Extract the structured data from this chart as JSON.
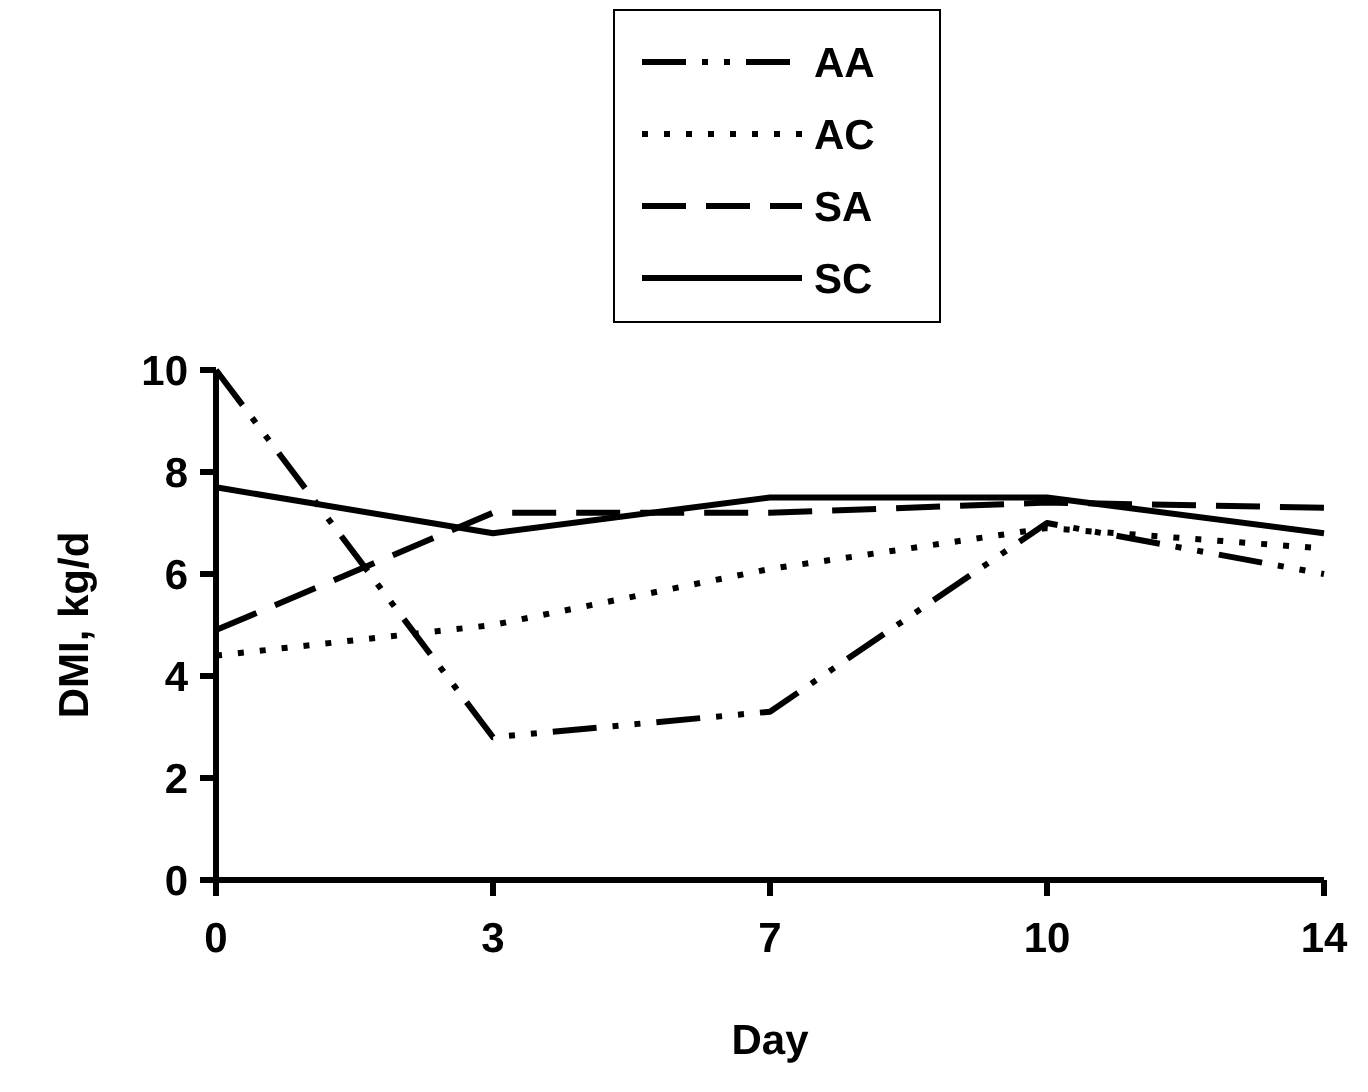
{
  "chart_data": {
    "type": "line",
    "xlabel": "Day",
    "ylabel": "DMI, kg/d",
    "categories": [
      "0",
      "3",
      "7",
      "10",
      "14"
    ],
    "ylim": [
      0,
      10
    ],
    "yticks": [
      0,
      2,
      4,
      6,
      8,
      10
    ],
    "grid": false,
    "legend": "top",
    "marker": "none",
    "series": [
      {
        "name": "AA",
        "color": "#000000",
        "line_style": "dashdot",
        "values": [
          10,
          2.8,
          3.3,
          7.0,
          6.0
        ]
      },
      {
        "name": "AC",
        "color": "#000000",
        "line_style": "dotted",
        "values": [
          4.4,
          5.0,
          6.1,
          6.9,
          6.5
        ]
      },
      {
        "name": "SA",
        "color": "#000000",
        "line_style": "dashed",
        "values": [
          4.9,
          7.2,
          7.2,
          7.4,
          7.3
        ]
      },
      {
        "name": "SC",
        "color": "#000000",
        "line_style": "solid",
        "values": [
          7.7,
          6.8,
          7.5,
          7.5,
          6.8
        ]
      }
    ]
  }
}
